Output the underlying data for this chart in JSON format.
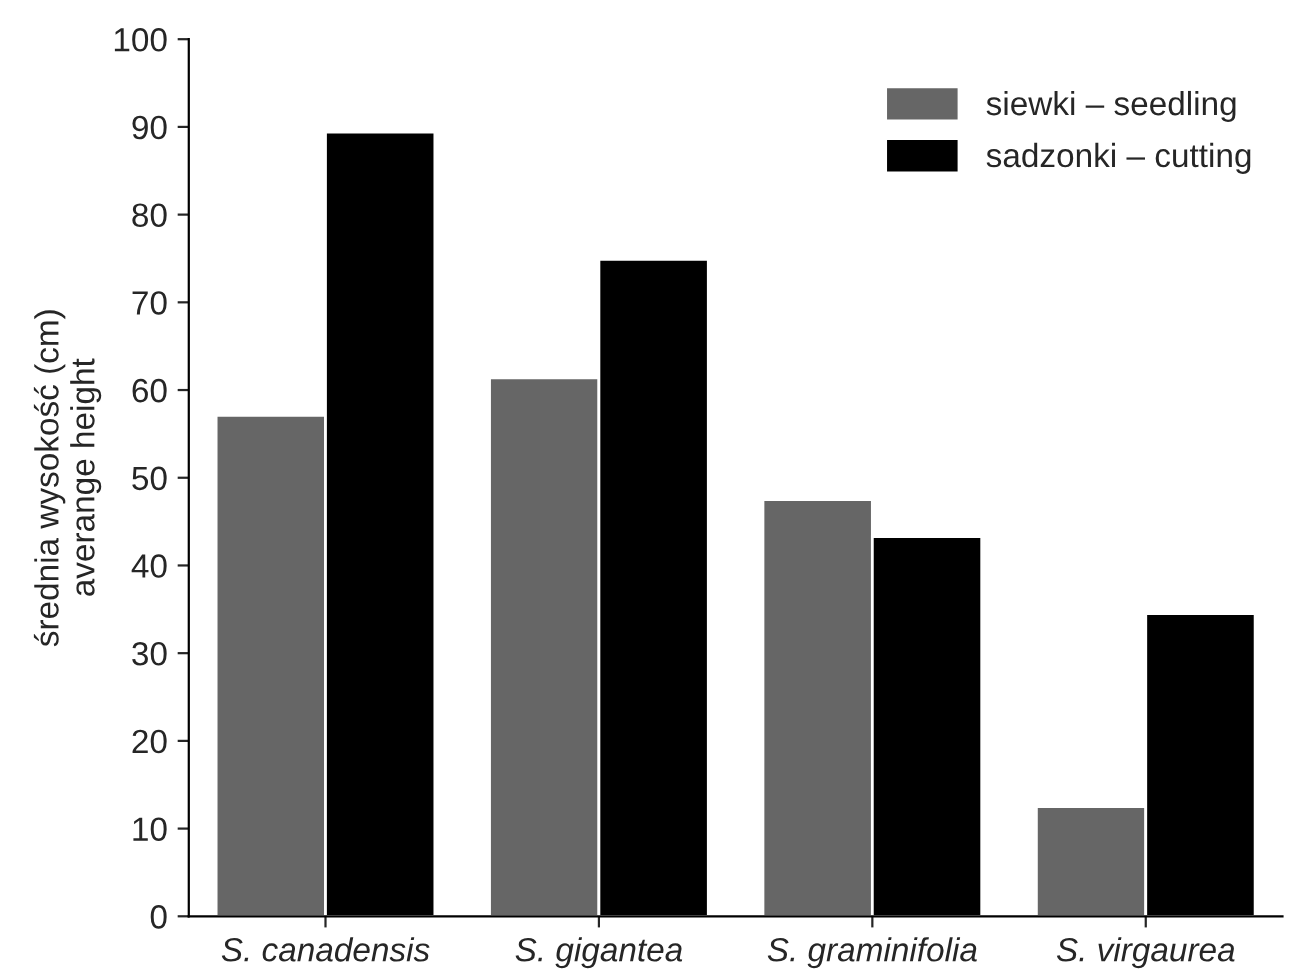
{
  "chart_data": {
    "type": "bar",
    "ylabel": "średnia wysokość (cm)\naverange height",
    "categories": [
      "S. canadensis",
      "S. gigantea",
      "S. graminifolia",
      "S. virgaurea"
    ],
    "series": [
      {
        "name": "siewki – seedling",
        "color": "#666666",
        "values": [
          57.1,
          61.4,
          47.5,
          12.5
        ]
      },
      {
        "name": "sadzonki – cutting",
        "color": "#000000",
        "values": [
          89.4,
          74.9,
          43.3,
          34.5
        ]
      }
    ],
    "ylim": [
      0,
      100
    ],
    "yticks": [
      0,
      10,
      20,
      30,
      40,
      50,
      60,
      70,
      80,
      90,
      100
    ],
    "grid": false,
    "legend": "top right"
  }
}
